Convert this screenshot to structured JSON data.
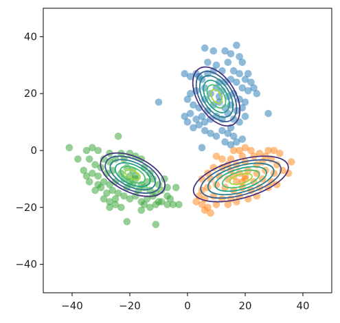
{
  "chart_data": {
    "type": "scatter",
    "title": "",
    "xlabel": "",
    "ylabel": "",
    "xlim": [
      -50,
      50
    ],
    "ylim": [
      -50,
      50
    ],
    "grid": false,
    "legend": "none",
    "xticks": [
      -40,
      -20,
      0,
      20,
      40
    ],
    "yticks": [
      -40,
      -20,
      0,
      20,
      40
    ],
    "x_tick_labels": [
      "−40",
      "−20",
      "0",
      "20",
      "40"
    ],
    "y_tick_labels": [
      "−40",
      "−20",
      "0",
      "20",
      "40"
    ],
    "series": [
      {
        "color": "#1f77b4",
        "points": [
          [
            6,
            36
          ],
          [
            9,
            35
          ],
          [
            13,
            35
          ],
          [
            15,
            34
          ],
          [
            17,
            37
          ],
          [
            18,
            33
          ],
          [
            19,
            31
          ],
          [
            7,
            31
          ],
          [
            10,
            30
          ],
          [
            14,
            31
          ],
          [
            3,
            27
          ],
          [
            4,
            26
          ],
          [
            5,
            25
          ],
          [
            7,
            27
          ],
          [
            -1,
            27
          ],
          [
            9,
            28
          ],
          [
            12,
            28
          ],
          [
            16,
            28
          ],
          [
            18,
            27
          ],
          [
            21,
            27
          ],
          [
            20,
            25
          ],
          [
            22,
            24
          ],
          [
            23,
            22
          ],
          [
            21,
            21
          ],
          [
            24,
            20
          ],
          [
            19,
            22
          ],
          [
            17,
            24
          ],
          [
            15,
            25
          ],
          [
            13,
            24
          ],
          [
            11,
            24
          ],
          [
            6,
            22
          ],
          [
            3,
            21
          ],
          [
            1,
            20
          ],
          [
            0,
            18
          ],
          [
            2,
            16
          ],
          [
            4,
            15
          ],
          [
            6,
            18
          ],
          [
            8,
            20
          ],
          [
            10,
            22
          ],
          [
            12,
            21
          ],
          [
            14,
            19
          ],
          [
            16,
            20
          ],
          [
            18,
            18
          ],
          [
            20,
            17
          ],
          [
            19,
            15
          ],
          [
            17,
            14
          ],
          [
            15,
            16
          ],
          [
            13,
            15
          ],
          [
            11,
            17
          ],
          [
            9,
            16
          ],
          [
            7,
            14
          ],
          [
            5,
            12
          ],
          [
            3,
            11
          ],
          [
            1,
            13
          ],
          [
            0,
            10
          ],
          [
            -1,
            12
          ],
          [
            2,
            8
          ],
          [
            4,
            9
          ],
          [
            6,
            10
          ],
          [
            8,
            11
          ],
          [
            10,
            12
          ],
          [
            12,
            11
          ],
          [
            14,
            13
          ],
          [
            16,
            11
          ],
          [
            18,
            10
          ],
          [
            20,
            12
          ],
          [
            6,
            7
          ],
          [
            8,
            6
          ],
          [
            10,
            5
          ],
          [
            12,
            7
          ],
          [
            14,
            6
          ],
          [
            15,
            8
          ],
          [
            16,
            5
          ],
          [
            17,
            3
          ],
          [
            15,
            2
          ],
          [
            19,
            4
          ],
          [
            13,
            3
          ],
          [
            -10,
            17
          ],
          [
            28,
            13
          ],
          [
            5,
            1
          ],
          [
            1,
            26
          ],
          [
            11,
            19
          ]
        ]
      },
      {
        "color": "#ff7f0e",
        "points": [
          [
            16,
            0
          ],
          [
            18,
            0
          ],
          [
            20,
            1
          ],
          [
            22,
            0
          ],
          [
            25,
            -1
          ],
          [
            28,
            0
          ],
          [
            30,
            0
          ],
          [
            32,
            -1
          ],
          [
            27,
            -2
          ],
          [
            23,
            -2
          ],
          [
            19,
            -2
          ],
          [
            15,
            -3
          ],
          [
            12,
            -3
          ],
          [
            10,
            -2
          ],
          [
            14,
            -5
          ],
          [
            17,
            -5
          ],
          [
            20,
            -4
          ],
          [
            24,
            -5
          ],
          [
            26,
            -4
          ],
          [
            29,
            -3
          ],
          [
            31,
            -5
          ],
          [
            33,
            -7
          ],
          [
            35,
            -8
          ],
          [
            30,
            -8
          ],
          [
            27,
            -7
          ],
          [
            24,
            -8
          ],
          [
            21,
            -7
          ],
          [
            18,
            -8
          ],
          [
            15,
            -7
          ],
          [
            12,
            -6
          ],
          [
            9,
            -6
          ],
          [
            7,
            -8
          ],
          [
            5,
            -10
          ],
          [
            8,
            -10
          ],
          [
            11,
            -9
          ],
          [
            14,
            -10
          ],
          [
            17,
            -11
          ],
          [
            20,
            -10
          ],
          [
            23,
            -11
          ],
          [
            26,
            -10
          ],
          [
            29,
            -11
          ],
          [
            31,
            -12
          ],
          [
            28,
            -13
          ],
          [
            25,
            -13
          ],
          [
            22,
            -14
          ],
          [
            19,
            -13
          ],
          [
            16,
            -14
          ],
          [
            13,
            -13
          ],
          [
            10,
            -12
          ],
          [
            7,
            -13
          ],
          [
            5,
            -14
          ],
          [
            4,
            -16
          ],
          [
            6,
            -17
          ],
          [
            9,
            -16
          ],
          [
            12,
            -17
          ],
          [
            15,
            -17
          ],
          [
            18,
            -16
          ],
          [
            21,
            -17
          ],
          [
            24,
            -16
          ],
          [
            3,
            -18
          ],
          [
            5,
            -19
          ],
          [
            7,
            -20
          ],
          [
            10,
            -19
          ],
          [
            14,
            -19
          ],
          [
            17,
            -18
          ],
          [
            6,
            -21
          ],
          [
            8,
            -22
          ],
          [
            19,
            -11
          ],
          [
            20,
            -9
          ],
          [
            16,
            -9
          ],
          [
            36,
            -4
          ]
        ]
      },
      {
        "color": "#2ca02c",
        "points": [
          [
            -41,
            1
          ],
          [
            -35,
            0
          ],
          [
            -33,
            1
          ],
          [
            -31,
            0
          ],
          [
            -24,
            5
          ],
          [
            -23,
            -1
          ],
          [
            -27,
            -1
          ],
          [
            -29,
            -3
          ],
          [
            -38,
            -3
          ],
          [
            -34,
            -3
          ],
          [
            -32,
            -5
          ],
          [
            -30,
            -6
          ],
          [
            -27,
            -4
          ],
          [
            -25,
            -3
          ],
          [
            -22,
            -3
          ],
          [
            -20,
            -1
          ],
          [
            -18,
            -2
          ],
          [
            -16,
            -3
          ],
          [
            -36,
            -7
          ],
          [
            -33,
            -8
          ],
          [
            -35,
            -9
          ],
          [
            -31,
            -9
          ],
          [
            -28,
            -8
          ],
          [
            -26,
            -7
          ],
          [
            -23,
            -8
          ],
          [
            -21,
            -6
          ],
          [
            -19,
            -7
          ],
          [
            -15,
            -6
          ],
          [
            -13,
            -8
          ],
          [
            -34,
            -11
          ],
          [
            -31,
            -12
          ],
          [
            -29,
            -11
          ],
          [
            -27,
            -12
          ],
          [
            -25,
            -11
          ],
          [
            -22,
            -10
          ],
          [
            -20,
            -9
          ],
          [
            -18,
            -10
          ],
          [
            -16,
            -12
          ],
          [
            -14,
            -11
          ],
          [
            -12,
            -10
          ],
          [
            -10,
            -12
          ],
          [
            -8,
            -10
          ],
          [
            -7,
            -13
          ],
          [
            -32,
            -14
          ],
          [
            -30,
            -13
          ],
          [
            -28,
            -15
          ],
          [
            -26,
            -14
          ],
          [
            -24,
            -15
          ],
          [
            -21,
            -13
          ],
          [
            -19,
            -12
          ],
          [
            -17,
            -14
          ],
          [
            -15,
            -13
          ],
          [
            -13,
            -14
          ],
          [
            -11,
            -15
          ],
          [
            -9,
            -14
          ],
          [
            -7,
            -16
          ],
          [
            -4,
            -13
          ],
          [
            -29,
            -17
          ],
          [
            -27,
            -18
          ],
          [
            -25,
            -17
          ],
          [
            -22,
            -16
          ],
          [
            -20,
            -17
          ],
          [
            -18,
            -16
          ],
          [
            -16,
            -18
          ],
          [
            -14,
            -17
          ],
          [
            -12,
            -16
          ],
          [
            -10,
            -18
          ],
          [
            -6,
            -17
          ],
          [
            -27,
            -20
          ],
          [
            -25,
            -19
          ],
          [
            -23,
            -20
          ],
          [
            -15,
            -19
          ],
          [
            -13,
            -20
          ],
          [
            -11,
            -19
          ],
          [
            -9,
            -18
          ],
          [
            -7,
            -19
          ],
          [
            -5,
            -19
          ],
          [
            -3,
            -19
          ],
          [
            -16,
            -21
          ],
          [
            -21,
            -25
          ],
          [
            -11,
            -26
          ],
          [
            -18,
            -9
          ],
          [
            -20,
            -11
          ]
        ]
      }
    ],
    "contours": [
      {
        "color_outer": "#46327e",
        "center": [
          10,
          19
        ],
        "ellipses": [
          {
            "rx": 6.5,
            "ry": 11.5,
            "angle": 32,
            "color": "#46327e"
          },
          {
            "rx": 5.6,
            "ry": 9.8,
            "angle": 32,
            "color": "#365c8d"
          },
          {
            "rx": 4.6,
            "ry": 8.1,
            "angle": 32,
            "color": "#277f8e"
          },
          {
            "rx": 3.6,
            "ry": 6.3,
            "angle": 32,
            "color": "#1fa187"
          },
          {
            "rx": 2.6,
            "ry": 4.5,
            "angle": 32,
            "color": "#4ac16d"
          },
          {
            "rx": 1.6,
            "ry": 2.7,
            "angle": 32,
            "color": "#a0da39"
          }
        ]
      },
      {
        "center": [
          18.5,
          -10
        ],
        "ellipses": [
          {
            "rx": 17,
            "ry": 6.7,
            "angle": 16,
            "color": "#46327e"
          },
          {
            "rx": 14.4,
            "ry": 5.6,
            "angle": 16,
            "color": "#365c8d"
          },
          {
            "rx": 11.8,
            "ry": 4.6,
            "angle": 16,
            "color": "#277f8e"
          },
          {
            "rx": 9.2,
            "ry": 3.6,
            "angle": 16,
            "color": "#1fa187"
          },
          {
            "rx": 6.6,
            "ry": 2.6,
            "angle": 16,
            "color": "#4ac16d"
          },
          {
            "rx": 4.0,
            "ry": 1.6,
            "angle": 16,
            "color": "#a0da39"
          }
        ]
      },
      {
        "center": [
          -19,
          -8.5
        ],
        "ellipses": [
          {
            "rx": 12,
            "ry": 6.2,
            "angle": -25,
            "color": "#46327e"
          },
          {
            "rx": 10.2,
            "ry": 5.3,
            "angle": -25,
            "color": "#365c8d"
          },
          {
            "rx": 8.4,
            "ry": 4.3,
            "angle": -25,
            "color": "#277f8e"
          },
          {
            "rx": 6.5,
            "ry": 3.4,
            "angle": -25,
            "color": "#1fa187"
          },
          {
            "rx": 4.6,
            "ry": 2.4,
            "angle": -25,
            "color": "#4ac16d"
          },
          {
            "rx": 2.8,
            "ry": 1.4,
            "angle": -25,
            "color": "#a0da39"
          }
        ]
      }
    ]
  }
}
